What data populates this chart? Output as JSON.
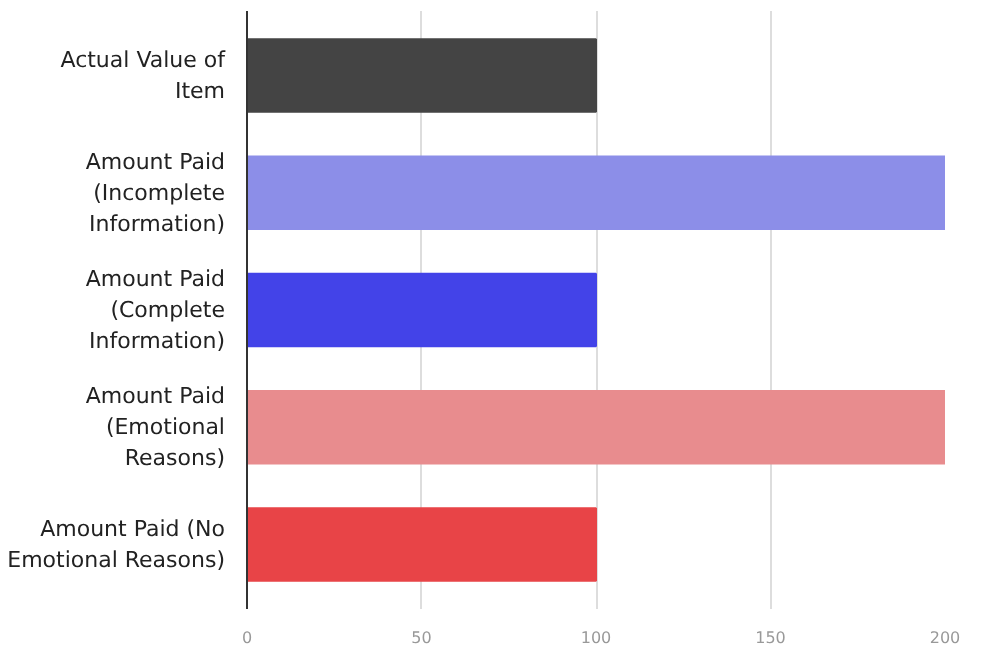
{
  "chart_data": {
    "type": "bar",
    "orientation": "horizontal",
    "categories": [
      "Actual Value of Item",
      "Amount Paid (Incomplete Information)",
      "Amount Paid (Complete Information)",
      "Amount Paid (Emotional Reasons)",
      "Amount Paid (No Emotional Reasons)"
    ],
    "values": [
      100,
      200,
      100,
      200,
      100
    ],
    "colors": [
      "#444444",
      "#8c8ee8",
      "#4343e8",
      "#e88c8e",
      "#e84447"
    ],
    "xlim": [
      0,
      200
    ],
    "xticks": [
      0,
      50,
      100,
      150,
      200
    ],
    "grid": "x"
  }
}
